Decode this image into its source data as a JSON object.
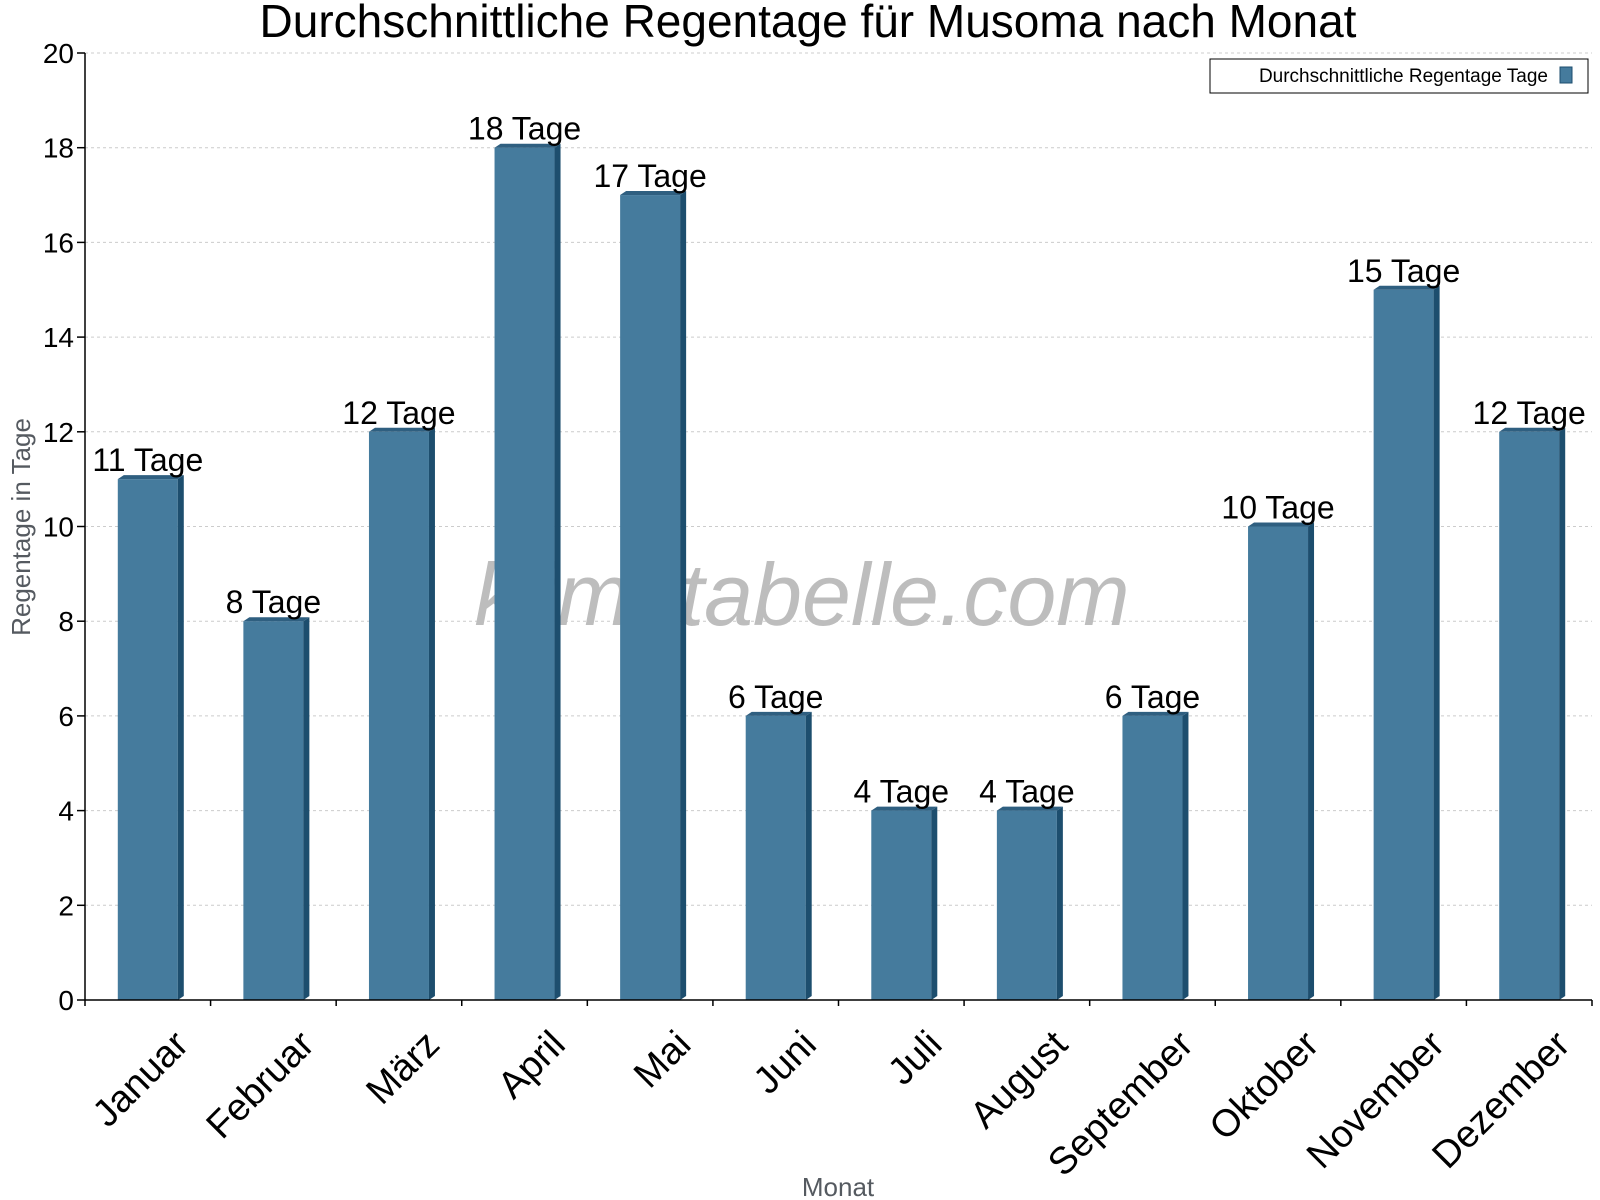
{
  "chart_data": {
    "type": "bar",
    "title": "Durchschnittliche Regentage für Musoma nach Monat",
    "xlabel": "Monat",
    "ylabel": "Regentage in Tage",
    "ylim": [
      0,
      20
    ],
    "yticks": [
      "0",
      "2",
      "4",
      "6",
      "8",
      "10",
      "12",
      "14",
      "16",
      "18",
      "20"
    ],
    "grid": true,
    "legend_position": "top-right",
    "categories": [
      "Januar",
      "Februar",
      "März",
      "April",
      "Mai",
      "Juni",
      "Juli",
      "August",
      "September",
      "Oktober",
      "November",
      "Dezember"
    ],
    "series": [
      {
        "name": "Durchschnittliche Regentage Tage",
        "values": [
          11,
          8,
          12,
          18,
          17,
          6,
          4,
          4,
          6,
          10,
          15,
          12
        ],
        "labels": [
          "11 Tage",
          "8 Tage",
          "12 Tage",
          "18 Tage",
          "17 Tage",
          "6 Tage",
          "4 Tage",
          "4 Tage",
          "6 Tage",
          "10 Tage",
          "15 Tage",
          "12 Tage"
        ]
      }
    ],
    "colors": {
      "bar": "#457b9d",
      "bar_side": "#1d4e6e",
      "bar_top": "#2f5f80",
      "grid": "#cccccc"
    },
    "watermark": "klimatabelle.com"
  }
}
